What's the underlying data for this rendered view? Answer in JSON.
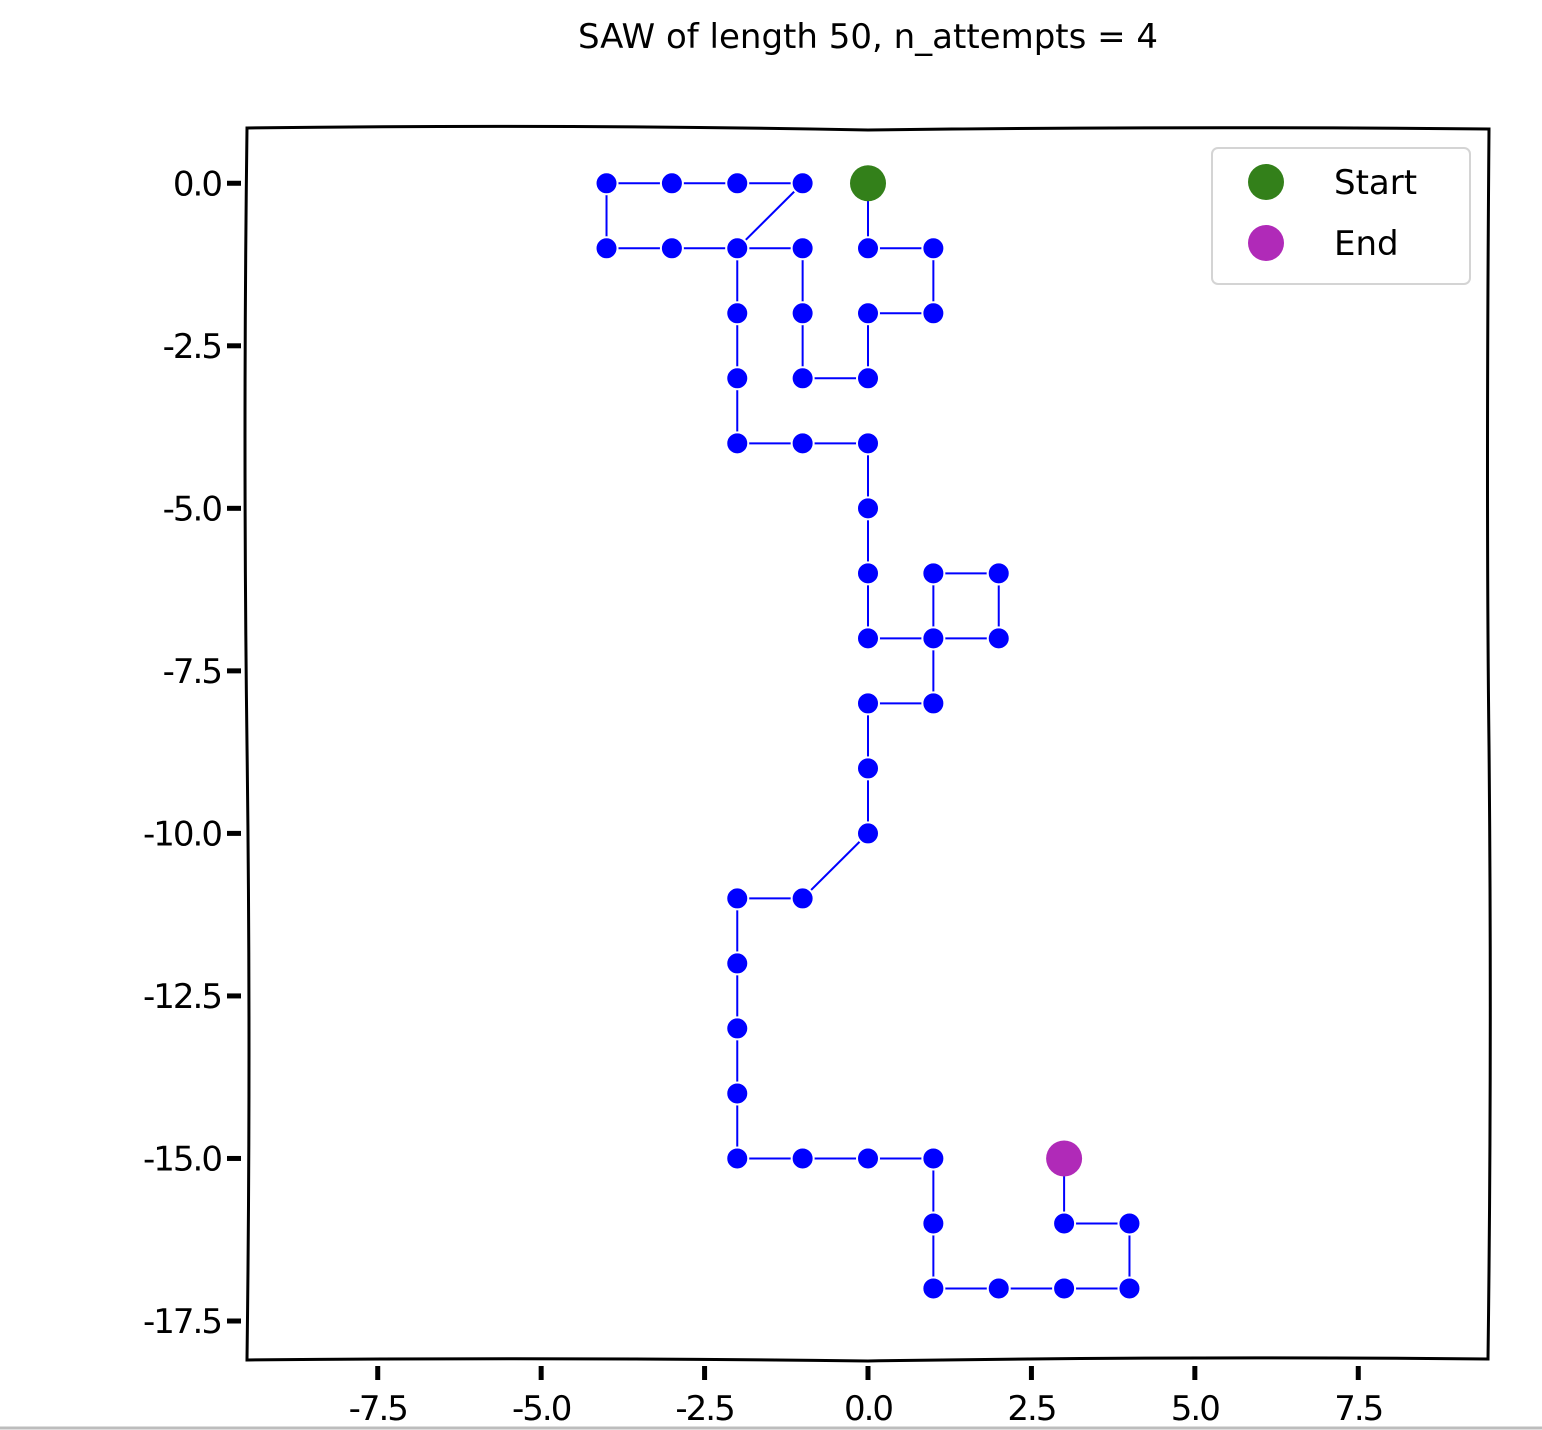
{
  "chart_data": {
    "type": "line",
    "title": "SAW of length 50, n_attempts = 4",
    "xlabel": "",
    "ylabel": "",
    "xlim": [
      -9.5,
      9.5
    ],
    "ylim": [
      -18.1,
      0.85
    ],
    "x_ticks": [
      -7.5,
      -5.0,
      -2.5,
      0.0,
      2.5,
      5.0,
      7.5
    ],
    "x_tick_labels": [
      "-7.5",
      "-5.0",
      "-2.5",
      "0.0",
      "2.5",
      "5.0",
      "7.5"
    ],
    "y_ticks": [
      0.0,
      -2.5,
      -5.0,
      -7.5,
      -10.0,
      -12.5,
      -15.0,
      -17.5
    ],
    "y_tick_labels": [
      "0.0",
      "-2.5",
      "-5.0",
      "-7.5",
      "-10.0",
      "-12.5",
      "-15.0",
      "-17.5"
    ],
    "grid": false,
    "legend_position": "top-right",
    "series": [
      {
        "color": "#0000ff",
        "x": [
          0,
          0,
          1,
          1,
          0,
          0,
          -1,
          -1,
          -1,
          -2,
          -3,
          -4,
          -4,
          -3,
          -2,
          -1,
          -2,
          -2,
          -2,
          -2,
          -1,
          0,
          0,
          0,
          0,
          1,
          2,
          2,
          2,
          1,
          1,
          0,
          0,
          0,
          -1,
          -2,
          -2,
          -2,
          -2,
          -2,
          -1,
          0,
          1,
          1,
          1,
          2,
          3,
          4,
          4,
          3,
          3
        ],
        "y": [
          0,
          -1,
          -1,
          -2,
          -2,
          -3,
          -3,
          -2,
          -1,
          -1,
          -1,
          -1,
          0,
          0,
          0,
          0,
          -1,
          -2,
          -3,
          -4,
          -4,
          -4,
          -5,
          -6,
          -7,
          -7,
          -7,
          -6,
          -6,
          -6,
          -8,
          -8,
          -9,
          -10,
          -11,
          -11,
          -12,
          -13,
          -14,
          -15,
          -15,
          -15,
          -15,
          -16,
          -17,
          -17,
          -17,
          -17,
          -16,
          -16,
          -15
        ]
      }
    ],
    "start": {
      "name": "Start",
      "x": 0,
      "y": 0,
      "color": "#33801a"
    },
    "end": {
      "name": "End",
      "x": 3,
      "y": -15,
      "color": "#b02ab8"
    }
  }
}
